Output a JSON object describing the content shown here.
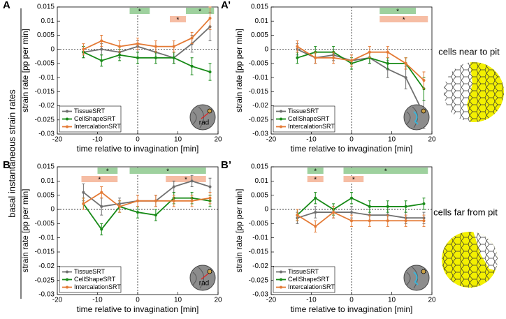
{
  "figure": {
    "side_label": "basal instantaneous strain rates",
    "right_labels": [
      "cells near to pit",
      "cells far from pit"
    ]
  },
  "chart_data": [
    {
      "type": "line",
      "panel": "A",
      "xlabel": "time relative to invagination [min]",
      "ylabel": "strain rate [pp per min]",
      "x": [
        -13.5,
        -9,
        -4.5,
        0,
        4.5,
        9,
        13.5,
        18
      ],
      "xlim": [
        -20,
        20
      ],
      "xticks": [
        -20,
        -10,
        0,
        10,
        20
      ],
      "ylim": [
        -0.03,
        0.015
      ],
      "yticks": [
        -0.03,
        -0.025,
        -0.02,
        -0.015,
        -0.01,
        -0.005,
        0,
        0.005,
        0.01,
        0.015
      ],
      "legend": "lower left",
      "inset_label": "rad",
      "significance_label": "*",
      "series": [
        {
          "name": "TissueSRT",
          "color": "#707070",
          "values": [
            -0.001,
            0.0,
            -0.001,
            0.001,
            -0.001,
            -0.003,
            0.002,
            0.008
          ],
          "errors": [
            0.002,
            0.002,
            0.002,
            0.002,
            0.002,
            0.002,
            0.003,
            0.005
          ],
          "significant": []
        },
        {
          "name": "CellShapeSRT",
          "color": "#178a17",
          "band_color": "#9ed19e",
          "values": [
            -0.001,
            -0.004,
            -0.002,
            -0.003,
            -0.003,
            -0.003,
            -0.006,
            -0.008
          ],
          "errors": [
            0.002,
            0.002,
            0.002,
            0.002,
            0.002,
            0.002,
            0.003,
            0.003
          ],
          "significant": [
            [
              -2,
              3
            ],
            [
              12,
              19
            ]
          ]
        },
        {
          "name": "IntercalationSRT",
          "color": "#e47a35",
          "band_color": "#f6bda4",
          "values": [
            0.0,
            0.003,
            0.001,
            0.002,
            0.001,
            0.001,
            0.004,
            0.011
          ],
          "errors": [
            0.002,
            0.002,
            0.002,
            0.002,
            0.002,
            0.002,
            0.002,
            0.004
          ],
          "significant": [
            [
              8,
              12
            ]
          ]
        }
      ]
    },
    {
      "type": "line",
      "panel": "A’",
      "xlabel": "time relative to invagination [min]",
      "ylabel": "strain rate [pp per min]",
      "x": [
        -13.5,
        -9,
        -4.5,
        0,
        4.5,
        9,
        13.5,
        18
      ],
      "xlim": [
        -20,
        20
      ],
      "xticks": [
        -20,
        -10,
        0,
        10,
        20
      ],
      "ylim": [
        -0.03,
        0.015
      ],
      "yticks": [
        -0.03,
        -0.025,
        -0.02,
        -0.015,
        -0.01,
        -0.005,
        0,
        0.005,
        0.01,
        0.015
      ],
      "legend": "lower left",
      "significance_label": "*",
      "series": [
        {
          "name": "TissueSRT",
          "color": "#707070",
          "values": [
            0.0,
            -0.003,
            -0.002,
            -0.004,
            -0.003,
            -0.007,
            -0.01,
            -0.023
          ],
          "errors": [
            0.002,
            0.002,
            0.002,
            0.002,
            0.002,
            0.003,
            0.004,
            0.005
          ],
          "significant": []
        },
        {
          "name": "CellShapeSRT",
          "color": "#178a17",
          "band_color": "#9ed19e",
          "values": [
            -0.003,
            -0.001,
            -0.001,
            -0.005,
            -0.003,
            -0.005,
            -0.005,
            -0.014
          ],
          "errors": [
            0.002,
            0.002,
            0.002,
            0.002,
            0.002,
            0.002,
            0.002,
            0.004
          ],
          "significant": [
            [
              7,
              16
            ]
          ]
        },
        {
          "name": "IntercalationSRT",
          "color": "#e47a35",
          "band_color": "#f6bda4",
          "values": [
            0.001,
            -0.003,
            -0.003,
            -0.004,
            -0.001,
            -0.001,
            -0.005,
            -0.011
          ],
          "errors": [
            0.002,
            0.002,
            0.002,
            0.002,
            0.002,
            0.002,
            0.002,
            0.003
          ],
          "significant": [
            [
              7,
              19
            ]
          ]
        }
      ]
    },
    {
      "type": "line",
      "panel": "B",
      "xlabel": "time relative to invagination [min]",
      "ylabel": "strain rate [pp per min]",
      "x": [
        -13.5,
        -9,
        -4.5,
        0,
        4.5,
        9,
        13.5,
        18
      ],
      "xlim": [
        -20,
        20
      ],
      "xticks": [
        -20,
        -10,
        0,
        10,
        20
      ],
      "ylim": [
        -0.03,
        0.015
      ],
      "yticks": [
        -0.03,
        -0.025,
        -0.02,
        -0.015,
        -0.01,
        -0.005,
        0,
        0.005,
        0.01,
        0.015
      ],
      "legend": "lower left",
      "inset_label": "rad",
      "significance_label": "*",
      "series": [
        {
          "name": "TissueSRT",
          "color": "#707070",
          "values": [
            0.006,
            0.001,
            0.002,
            0.003,
            0.003,
            0.008,
            0.01,
            0.008
          ],
          "errors": [
            0.003,
            0.003,
            0.002,
            0.002,
            0.002,
            0.002,
            0.002,
            0.003
          ],
          "significant": []
        },
        {
          "name": "CellShapeSRT",
          "color": "#178a17",
          "band_color": "#9ed19e",
          "values": [
            0.002,
            -0.007,
            0.001,
            -0.001,
            -0.002,
            0.004,
            0.004,
            0.003
          ],
          "errors": [
            0.002,
            0.002,
            0.002,
            0.002,
            0.002,
            0.002,
            0.002,
            0.002
          ],
          "significant": [
            [
              -10,
              -5
            ],
            [
              -2,
              17
            ]
          ]
        },
        {
          "name": "IntercalationSRT",
          "color": "#e47a35",
          "band_color": "#f6bda4",
          "values": [
            0.002,
            0.006,
            0.001,
            0.003,
            0.003,
            0.003,
            0.003,
            0.004
          ],
          "errors": [
            0.002,
            0.002,
            0.002,
            0.002,
            0.002,
            0.002,
            0.002,
            0.002
          ],
          "significant": [
            [
              -14,
              -5
            ],
            [
              7,
              17
            ]
          ]
        }
      ]
    },
    {
      "type": "line",
      "panel": "B’",
      "xlabel": "time relative to invagination [min]",
      "ylabel": "strain rate [pp per min]",
      "x": [
        -13.5,
        -9,
        -4.5,
        0,
        4.5,
        9,
        13.5,
        18
      ],
      "xlim": [
        -20,
        20
      ],
      "xticks": [
        -20,
        -10,
        0,
        10,
        20
      ],
      "ylim": [
        -0.03,
        0.015
      ],
      "yticks": [
        -0.03,
        -0.025,
        -0.02,
        -0.015,
        -0.01,
        -0.005,
        0,
        0.005,
        0.01,
        0.015
      ],
      "legend": "lower left",
      "significance_label": "*",
      "series": [
        {
          "name": "TissueSRT",
          "color": "#707070",
          "values": [
            -0.003,
            -0.001,
            -0.001,
            -0.001,
            -0.002,
            -0.002,
            -0.003,
            -0.003
          ],
          "errors": [
            0.002,
            0.002,
            0.002,
            0.002,
            0.002,
            0.002,
            0.002,
            0.002
          ],
          "significant": []
        },
        {
          "name": "CellShapeSRT",
          "color": "#178a17",
          "band_color": "#9ed19e",
          "values": [
            -0.002,
            0.004,
            0.0,
            0.004,
            0.001,
            0.001,
            0.001,
            0.002
          ],
          "errors": [
            0.002,
            0.002,
            0.002,
            0.002,
            0.002,
            0.002,
            0.002,
            0.002
          ],
          "significant": [
            [
              -11,
              -7
            ],
            [
              -2,
              19
            ]
          ]
        },
        {
          "name": "IntercalationSRT",
          "color": "#e47a35",
          "band_color": "#f6bda4",
          "values": [
            -0.002,
            -0.006,
            -0.001,
            -0.004,
            -0.004,
            -0.004,
            -0.004,
            -0.004
          ],
          "errors": [
            0.002,
            0.002,
            0.002,
            0.002,
            0.002,
            0.002,
            0.002,
            0.002
          ],
          "significant": [
            [
              -11,
              -7
            ],
            [
              -2,
              3
            ]
          ]
        }
      ]
    }
  ]
}
